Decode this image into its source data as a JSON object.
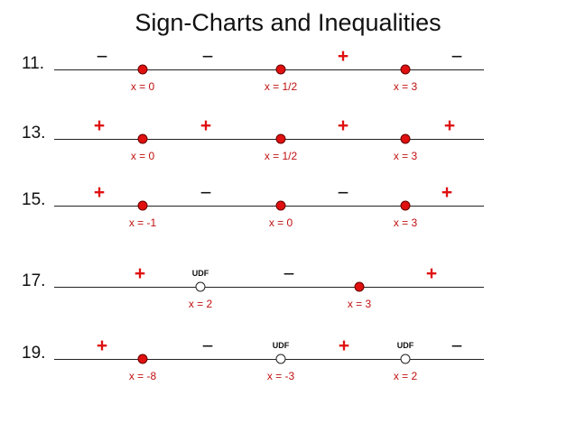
{
  "title": "Sign-Charts and Inequalities",
  "problems": [
    {
      "number": "11.",
      "signs": [
        "−",
        "−",
        "+",
        "−"
      ],
      "points": [
        {
          "label": "x = 0",
          "type": "closed",
          "note": ""
        },
        {
          "label": "x = 1/2",
          "type": "closed",
          "note": ""
        },
        {
          "label": "x = 3",
          "type": "closed",
          "note": ""
        }
      ]
    },
    {
      "number": "13.",
      "signs": [
        "+",
        "+",
        "+",
        "+"
      ],
      "points": [
        {
          "label": "x = 0",
          "type": "closed",
          "note": ""
        },
        {
          "label": "x = 1/2",
          "type": "closed",
          "note": ""
        },
        {
          "label": "x = 3",
          "type": "closed",
          "note": ""
        }
      ]
    },
    {
      "number": "15.",
      "signs": [
        "+",
        "−",
        "−",
        "+"
      ],
      "points": [
        {
          "label": "x = -1",
          "type": "closed",
          "note": ""
        },
        {
          "label": "x = 0",
          "type": "closed",
          "note": ""
        },
        {
          "label": "x = 3",
          "type": "closed",
          "note": ""
        }
      ]
    },
    {
      "number": "17.",
      "signs": [
        "+",
        "−",
        "+"
      ],
      "points": [
        {
          "label": "x = 2",
          "type": "open",
          "note": "UDF"
        },
        {
          "label": "x = 3",
          "type": "closed",
          "note": ""
        }
      ]
    },
    {
      "number": "19.",
      "signs": [
        "+",
        "−",
        "+",
        "−"
      ],
      "points": [
        {
          "label": "x = -8",
          "type": "closed",
          "note": ""
        },
        {
          "label": "x = -3",
          "type": "open",
          "note": "UDF"
        },
        {
          "label": "x = 2",
          "type": "open",
          "note": "UDF"
        }
      ]
    }
  ],
  "colors": {
    "plus": "#e01010",
    "minus": "#111111",
    "closed_dot": "#e01010",
    "label": "#c01010"
  }
}
